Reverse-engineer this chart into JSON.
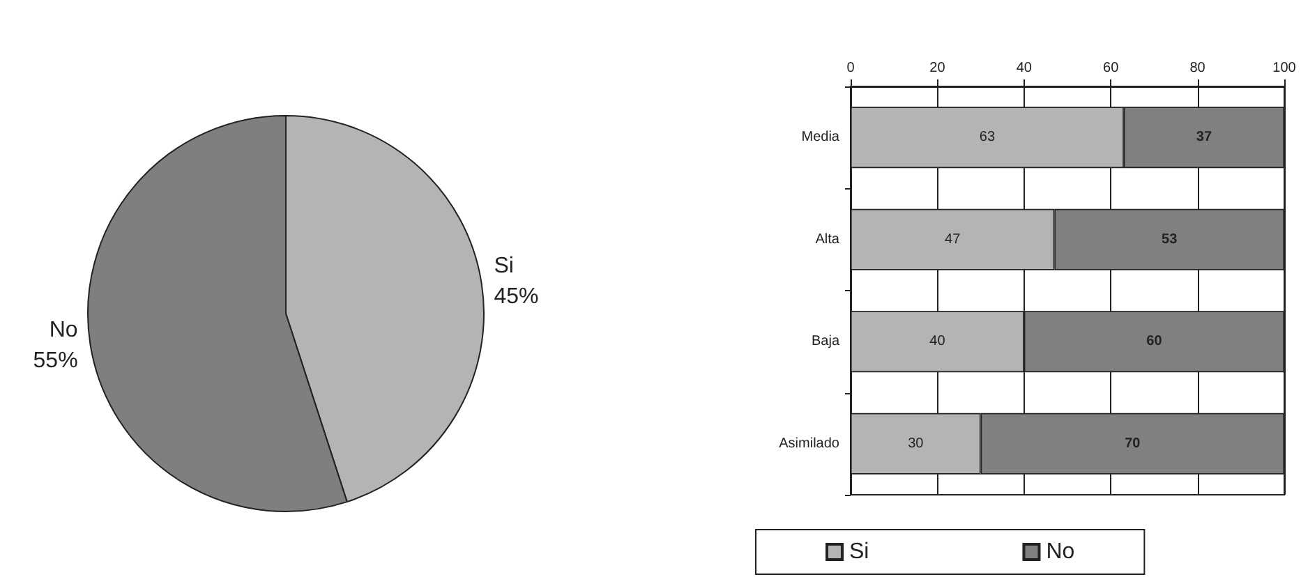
{
  "chart_data": [
    {
      "type": "pie",
      "categories": [
        "Si",
        "No"
      ],
      "values": [
        45,
        55
      ],
      "colors": [
        "#b4b4b4",
        "#7f7f7f"
      ],
      "value_labels": [
        "45%",
        "55%"
      ],
      "legend": false
    },
    {
      "type": "bar",
      "orientation": "horizontal",
      "stacked": true,
      "categories": [
        "Media",
        "Alta",
        "Baja",
        "Asimilado"
      ],
      "series": [
        {
          "name": "Si",
          "color": "#b4b4b4",
          "values": [
            63,
            47,
            40,
            30
          ]
        },
        {
          "name": "No",
          "color": "#808080",
          "values": [
            37,
            53,
            60,
            70
          ]
        }
      ],
      "xlim": [
        0,
        100
      ],
      "xticks": [
        0,
        20,
        40,
        60,
        80,
        100
      ],
      "grid": "x",
      "legend": "bottom",
      "data_labels": true
    }
  ]
}
